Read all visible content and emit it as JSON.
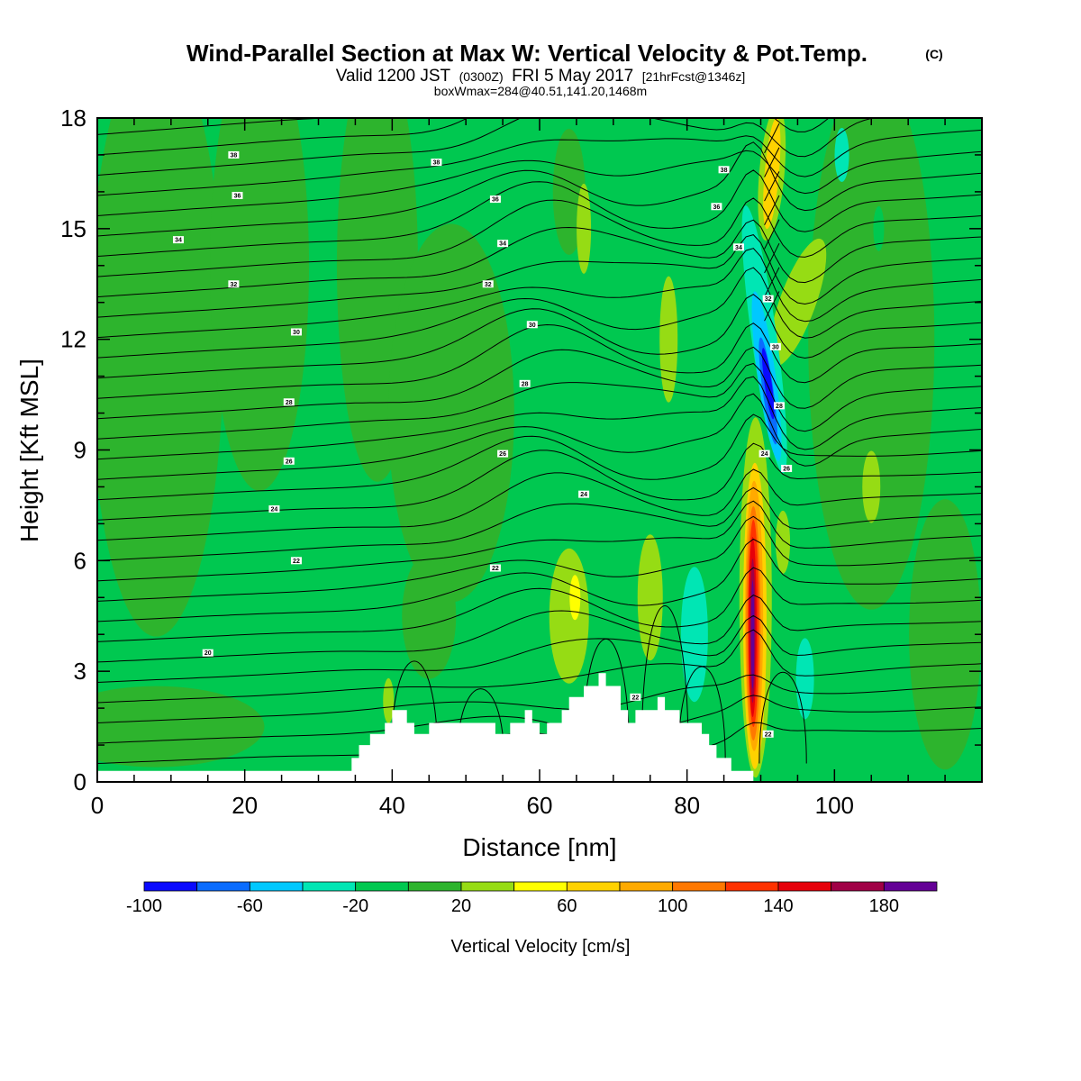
{
  "title": {
    "main": "Wind-Parallel Section at Max W: Vertical Velocity & Pot.Temp.",
    "copyright": "(C)",
    "valid_prefix": "Valid 1200 JST",
    "valid_utc": "(0300Z)",
    "valid_date": "FRI 5 May 2017",
    "valid_fcst": "[21hrFcst@1346z]",
    "box_info": "boxWmax=284@40.51,141.20,1468m"
  },
  "chart_data": {
    "type": "heatmap",
    "title": "Wind-Parallel Section at Max W: Vertical Velocity & Pot.Temp.",
    "xlabel": "Distance [nm]",
    "ylabel": "Height [Kft MSL]",
    "xlim": [
      0,
      120
    ],
    "ylim": [
      0,
      18
    ],
    "x_ticks": [
      0,
      20,
      40,
      60,
      80,
      100
    ],
    "y_ticks": [
      0,
      3,
      6,
      9,
      12,
      15,
      18
    ],
    "colorbar": {
      "label": "Vertical Velocity [cm/s]",
      "bounds": [
        -100,
        200
      ],
      "tick_values": [
        -100,
        -60,
        -20,
        20,
        60,
        100,
        140,
        180
      ],
      "colors": [
        "#0a0aff",
        "#0a6cff",
        "#00c8ff",
        "#00e6b4",
        "#00c850",
        "#2db42d",
        "#96dc14",
        "#ffff00",
        "#ffd200",
        "#ffaa00",
        "#ff7800",
        "#ff3200",
        "#e6000a",
        "#a00046",
        "#640096"
      ]
    },
    "field_background_color": "#00c850",
    "terrain_color": "#ffffff",
    "terrain_profile": {
      "x": [
        0,
        34.5,
        34.5,
        35.5,
        35.5,
        37,
        37,
        39,
        39,
        40,
        40,
        42,
        42,
        43,
        43,
        45,
        45,
        46,
        46,
        54,
        54,
        56,
        56,
        58,
        58,
        59,
        59,
        60,
        60,
        61,
        61,
        63,
        63,
        64,
        64,
        66,
        66,
        68,
        68,
        69,
        69,
        71,
        71,
        72,
        72,
        73,
        73,
        76,
        76,
        77,
        77,
        79,
        79,
        82,
        82,
        83,
        83,
        84,
        84,
        86,
        86,
        89,
        89,
        93,
        93,
        120
      ],
      "y": [
        0.3,
        0.3,
        0.65,
        0.65,
        1.0,
        1.0,
        1.3,
        1.3,
        1.6,
        1.6,
        1.95,
        1.95,
        1.6,
        1.6,
        1.3,
        1.3,
        1.6,
        1.6,
        1.6,
        1.6,
        1.3,
        1.3,
        1.6,
        1.6,
        1.95,
        1.95,
        1.6,
        1.6,
        1.3,
        1.3,
        1.6,
        1.6,
        1.95,
        1.95,
        2.3,
        2.3,
        2.6,
        2.6,
        2.95,
        2.95,
        2.6,
        2.6,
        1.95,
        1.95,
        1.6,
        1.6,
        1.95,
        1.95,
        2.3,
        2.3,
        1.95,
        1.95,
        1.6,
        1.6,
        1.3,
        1.3,
        1.0,
        1.0,
        0.65,
        0.65,
        0.3,
        0.3,
        0.0,
        0.0,
        0.0,
        0.0
      ]
    },
    "velocity_features": [
      {
        "name": "light-green band",
        "class_value": 10,
        "x": [
          0,
          18
        ],
        "y": [
          0.3,
          18
        ]
      },
      {
        "name": "mid-level band",
        "class_value": 10,
        "x": [
          25,
          60
        ],
        "y": [
          3,
          18
        ]
      },
      {
        "name": "lower updraft 63-70",
        "class_value": 30,
        "x": [
          62,
          69
        ],
        "y": [
          2,
          6
        ]
      },
      {
        "name": "lower updraft 74-78",
        "class_value": 30,
        "x": [
          73,
          78
        ],
        "y": [
          2,
          6
        ]
      },
      {
        "name": "downdraft 80-84",
        "class_value": -20,
        "x": [
          80,
          84
        ],
        "y": [
          1,
          6
        ]
      },
      {
        "name": "main updraft core",
        "class_value": 140,
        "x": [
          88,
          90.5
        ],
        "y": [
          1.0,
          8.0
        ]
      },
      {
        "name": "main downdraft",
        "class_value": -100,
        "x": [
          89.5,
          92
        ],
        "y": [
          9.0,
          12.5
        ]
      },
      {
        "name": "upper updraft",
        "class_value": 60,
        "x": [
          90,
          92.5
        ],
        "y": [
          13,
          18
        ]
      }
    ],
    "theta_contours": {
      "unit": "theta labels",
      "labels_shown": [
        {
          "text": "20",
          "x": 15,
          "y": 3.5
        },
        {
          "text": "22",
          "x": 27,
          "y": 6.0
        },
        {
          "text": "24",
          "x": 24,
          "y": 7.4
        },
        {
          "text": "26",
          "x": 26,
          "y": 8.7
        },
        {
          "text": "28",
          "x": 26,
          "y": 10.3
        },
        {
          "text": "30",
          "x": 27,
          "y": 12.2
        },
        {
          "text": "32",
          "x": 18.5,
          "y": 13.5
        },
        {
          "text": "34",
          "x": 11,
          "y": 14.7
        },
        {
          "text": "36",
          "x": 19,
          "y": 15.9
        },
        {
          "text": "38",
          "x": 18.5,
          "y": 17.0
        },
        {
          "text": "38",
          "x": 46,
          "y": 16.8
        },
        {
          "text": "36",
          "x": 54,
          "y": 15.8
        },
        {
          "text": "34",
          "x": 55,
          "y": 14.6
        },
        {
          "text": "32",
          "x": 53,
          "y": 13.5
        },
        {
          "text": "30",
          "x": 59,
          "y": 12.4
        },
        {
          "text": "28",
          "x": 58,
          "y": 10.8
        },
        {
          "text": "26",
          "x": 55,
          "y": 8.9
        },
        {
          "text": "24",
          "x": 66,
          "y": 7.8
        },
        {
          "text": "22",
          "x": 54,
          "y": 5.8
        },
        {
          "text": "38",
          "x": 85,
          "y": 16.6
        },
        {
          "text": "36",
          "x": 84,
          "y": 15.6
        },
        {
          "text": "34",
          "x": 87,
          "y": 14.5
        },
        {
          "text": "32",
          "x": 91,
          "y": 13.1
        },
        {
          "text": "30",
          "x": 92,
          "y": 11.8
        },
        {
          "text": "28",
          "x": 92.5,
          "y": 10.2
        },
        {
          "text": "24",
          "x": 90.5,
          "y": 8.9
        },
        {
          "text": "26",
          "x": 93.5,
          "y": 8.5
        },
        {
          "text": "22",
          "x": 91,
          "y": 1.3
        },
        {
          "text": "22",
          "x": 73,
          "y": 2.3
        }
      ]
    }
  }
}
